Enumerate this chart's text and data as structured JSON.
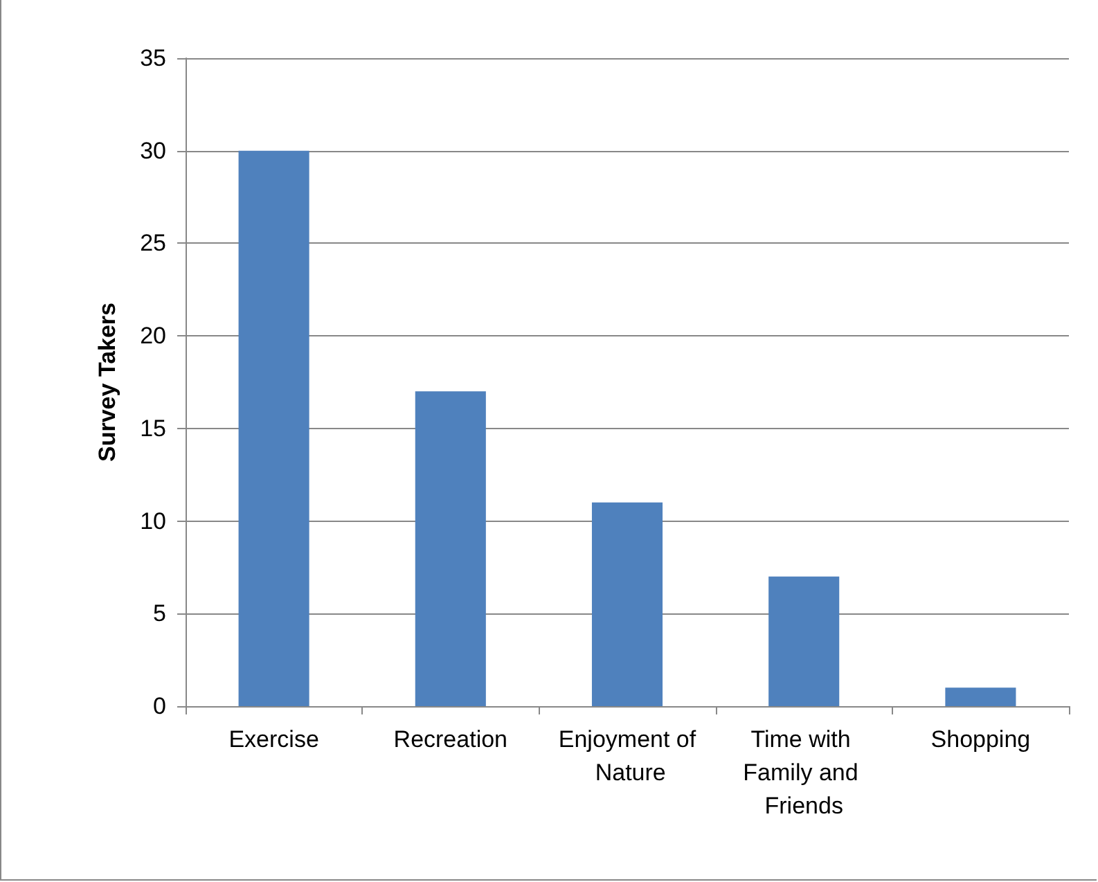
{
  "chart_data": {
    "type": "bar",
    "ylabel": "Survey Takers",
    "categories": [
      "Exercise",
      "Recreation",
      "Enjoyment of Nature",
      "Time with Family and Friends",
      "Shopping"
    ],
    "values": [
      30,
      17,
      11,
      7,
      1
    ],
    "color": "#4f81bd",
    "ylim": [
      0,
      35
    ],
    "yticks": [
      0,
      5,
      10,
      15,
      20,
      25,
      30,
      35
    ],
    "grid": "y"
  }
}
